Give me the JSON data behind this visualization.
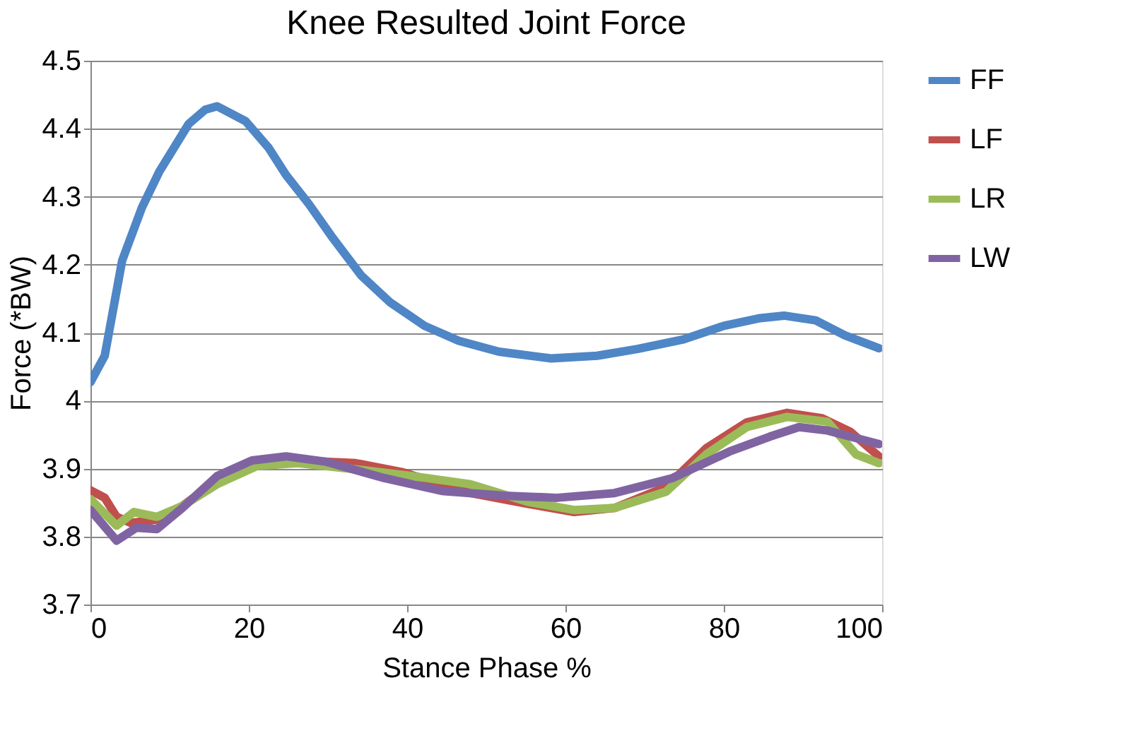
{
  "chart_data": {
    "type": "line",
    "title": "Knee Resulted Joint Force",
    "xlabel": "Stance Phase %",
    "ylabel": "Force (*BW)",
    "xlim": [
      0,
      100
    ],
    "xticks": [
      0,
      20,
      40,
      60,
      80,
      100
    ],
    "ylim": [
      3.7,
      4.5
    ],
    "yticks": [
      3.7,
      3.8,
      3.9,
      4,
      4.1,
      4.2,
      4.3,
      4.4,
      4.5
    ],
    "grid": "y",
    "legend": "right",
    "marker": "none",
    "line_style": "solid",
    "series": [
      {
        "name": "FF",
        "color": "#4f86c6",
        "x": [
          0,
          1.8,
          4,
          6.5,
          8.7,
          12.4,
          14.5,
          16,
          19.6,
          22.5,
          24.7,
          27.6,
          30.5,
          34.2,
          37.8,
          42.2,
          46.5,
          51.6,
          58.2,
          64,
          69.1,
          74.9,
          80,
          84.4,
          87.6,
          91.6,
          95.3,
          99.6
        ],
        "values": [
          4.027,
          4.066,
          4.206,
          4.284,
          4.337,
          4.407,
          4.428,
          4.433,
          4.411,
          4.372,
          4.332,
          4.289,
          4.241,
          4.184,
          4.145,
          4.11,
          4.088,
          4.072,
          4.062,
          4.066,
          4.076,
          4.09,
          4.11,
          4.121,
          4.125,
          4.118,
          4.096,
          4.077
        ]
      },
      {
        "name": "LF",
        "color": "#c0504d",
        "x": [
          0,
          1.8,
          3.3,
          5.1,
          8.4,
          11.6,
          16,
          21.1,
          26.2,
          33.5,
          39.3,
          48,
          55.3,
          61.1,
          66.2,
          72.7,
          77.8,
          82.9,
          88,
          92.4,
          96,
          99.6
        ],
        "values": [
          3.868,
          3.857,
          3.829,
          3.82,
          3.825,
          3.845,
          3.882,
          3.906,
          3.912,
          3.908,
          3.895,
          3.864,
          3.848,
          3.836,
          3.842,
          3.873,
          3.93,
          3.968,
          3.982,
          3.974,
          3.954,
          3.918
        ]
      },
      {
        "name": "LR",
        "color": "#9bbb59",
        "x": [
          0,
          3.3,
          5.5,
          8.4,
          11.6,
          16,
          21.1,
          26.2,
          33.5,
          40.7,
          48,
          55.3,
          61.1,
          66.2,
          72.7,
          77.8,
          82.9,
          88,
          93.1,
          96.7,
          99.6
        ],
        "values": [
          3.855,
          3.816,
          3.836,
          3.829,
          3.845,
          3.877,
          3.904,
          3.908,
          3.899,
          3.889,
          3.877,
          3.851,
          3.839,
          3.842,
          3.866,
          3.921,
          3.961,
          3.976,
          3.969,
          3.921,
          3.908
        ]
      },
      {
        "name": "LW",
        "color": "#8064a2",
        "x": [
          0,
          3.3,
          5.8,
          8.4,
          11.6,
          16,
          20.4,
          24.7,
          29.8,
          37.1,
          44.4,
          52.4,
          58.9,
          66.2,
          73.5,
          80.7,
          85.8,
          89.5,
          93.1,
          96,
          99.6
        ],
        "values": [
          3.839,
          3.794,
          3.813,
          3.811,
          3.842,
          3.889,
          3.912,
          3.918,
          3.91,
          3.886,
          3.867,
          3.86,
          3.857,
          3.864,
          3.886,
          3.925,
          3.947,
          3.961,
          3.956,
          3.947,
          3.936
        ]
      }
    ]
  }
}
